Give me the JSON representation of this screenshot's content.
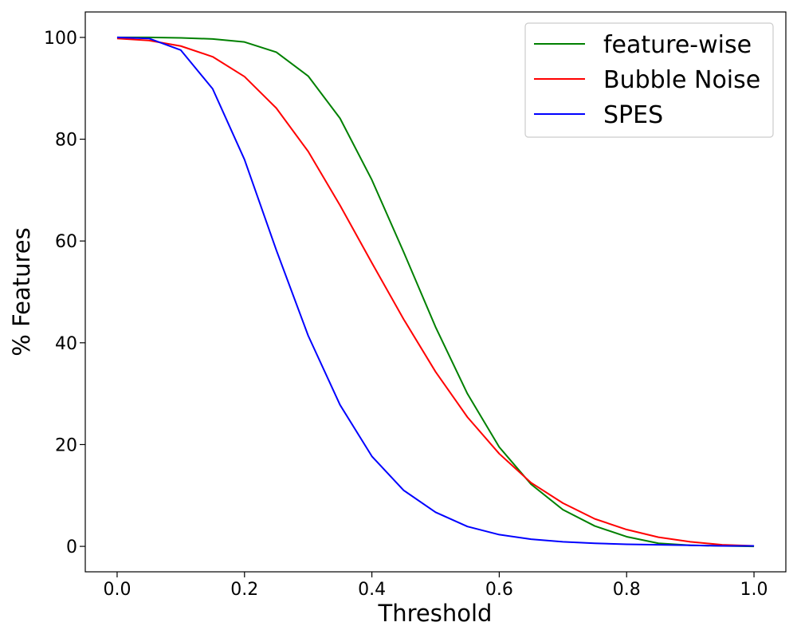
{
  "chart_data": {
    "type": "line",
    "title": "",
    "xlabel": "Threshold",
    "ylabel": "% Features",
    "xlim": [
      -0.05,
      1.05
    ],
    "ylim": [
      -5,
      105
    ],
    "xticks": [
      0.0,
      0.2,
      0.4,
      0.6,
      0.8,
      1.0
    ],
    "xtick_labels": [
      "0.0",
      "0.2",
      "0.4",
      "0.6",
      "0.8",
      "1.0"
    ],
    "yticks": [
      0,
      20,
      40,
      60,
      80,
      100
    ],
    "ytick_labels": [
      "0",
      "20",
      "40",
      "60",
      "80",
      "100"
    ],
    "grid": false,
    "legend_position": "top-right",
    "x": [
      0.0,
      0.05,
      0.1,
      0.15,
      0.2,
      0.25,
      0.3,
      0.35,
      0.4,
      0.45,
      0.5,
      0.55,
      0.6,
      0.65,
      0.7,
      0.75,
      0.8,
      0.85,
      0.9,
      0.95,
      1.0
    ],
    "series": [
      {
        "name": "feature-wise",
        "color": "#008000",
        "values": [
          100.0,
          100.0,
          99.9,
          99.7,
          99.1,
          97.1,
          92.4,
          84.1,
          72.0,
          57.8,
          43.1,
          30.0,
          19.5,
          12.2,
          7.2,
          4.0,
          1.9,
          0.6,
          0.2,
          0.1,
          0.0
        ]
      },
      {
        "name": "Bubble Noise",
        "color": "#ff0000",
        "values": [
          99.8,
          99.4,
          98.3,
          96.2,
          92.3,
          86.1,
          77.6,
          67.0,
          55.7,
          44.6,
          34.3,
          25.4,
          18.2,
          12.5,
          8.5,
          5.4,
          3.3,
          1.8,
          0.9,
          0.3,
          0.1
        ]
      },
      {
        "name": "SPES",
        "color": "#0000ff",
        "values": [
          100.0,
          99.8,
          97.5,
          89.9,
          76.0,
          58.2,
          41.4,
          27.8,
          17.7,
          11.0,
          6.7,
          3.9,
          2.3,
          1.4,
          0.9,
          0.6,
          0.4,
          0.3,
          0.2,
          0.1,
          0.1
        ]
      }
    ]
  }
}
